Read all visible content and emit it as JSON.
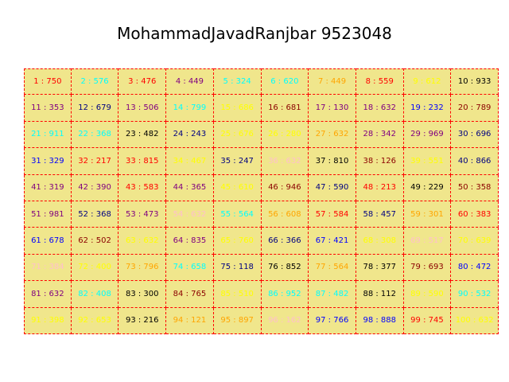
{
  "title": "MohammadJavadRanjbar 9523048",
  "colors": {
    "cell_background": "#f0e68c",
    "border": "#ff0000"
  },
  "cells": [
    {
      "text": "1 : 750",
      "color": "#ff0000"
    },
    {
      "text": "2 : 576",
      "color": "#00ffff"
    },
    {
      "text": "3 : 476",
      "color": "#ff0000"
    },
    {
      "text": "4 : 449",
      "color": "#800080"
    },
    {
      "text": "5 : 324",
      "color": "#00ffff"
    },
    {
      "text": "6 : 620",
      "color": "#00ffff"
    },
    {
      "text": "7 : 449",
      "color": "#ffa500"
    },
    {
      "text": "8 : 559",
      "color": "#ff0000"
    },
    {
      "text": "9 : 612",
      "color": "#ffff00"
    },
    {
      "text": "10 : 933",
      "color": "#000000"
    },
    {
      "text": "11 : 353",
      "color": "#800080"
    },
    {
      "text": "12 : 679",
      "color": "#000080"
    },
    {
      "text": "13 : 506",
      "color": "#800080"
    },
    {
      "text": "14 : 799",
      "color": "#00ffff"
    },
    {
      "text": "15 : 686",
      "color": "#ffff00"
    },
    {
      "text": "16 : 681",
      "color": "#8b0000"
    },
    {
      "text": "17 : 130",
      "color": "#800080"
    },
    {
      "text": "18 : 632",
      "color": "#800080"
    },
    {
      "text": "19 : 232",
      "color": "#0000ff"
    },
    {
      "text": "20 : 789",
      "color": "#8b0000"
    },
    {
      "text": "21 : 911",
      "color": "#00ffff"
    },
    {
      "text": "22 : 368",
      "color": "#00ffff"
    },
    {
      "text": "23 : 482",
      "color": "#000000"
    },
    {
      "text": "24 : 243",
      "color": "#000080"
    },
    {
      "text": "25 : 676",
      "color": "#ffff00"
    },
    {
      "text": "26 : 280",
      "color": "#ffff00"
    },
    {
      "text": "27 : 632",
      "color": "#ffa500"
    },
    {
      "text": "28 : 342",
      "color": "#800080"
    },
    {
      "text": "29 : 969",
      "color": "#800080"
    },
    {
      "text": "30 : 696",
      "color": "#000080"
    },
    {
      "text": "31 : 329",
      "color": "#0000ff"
    },
    {
      "text": "32 : 217",
      "color": "#ff0000"
    },
    {
      "text": "33 : 815",
      "color": "#ff0000"
    },
    {
      "text": "34 : 467",
      "color": "#ffff00"
    },
    {
      "text": "35 : 247",
      "color": "#000080"
    },
    {
      "text": "36 : 632",
      "color": "#ffc0cb"
    },
    {
      "text": "37 : 810",
      "color": "#000000"
    },
    {
      "text": "38 : 126",
      "color": "#8b0000"
    },
    {
      "text": "39 : 551",
      "color": "#ffff00"
    },
    {
      "text": "40 : 866",
      "color": "#000080"
    },
    {
      "text": "41 : 319",
      "color": "#800080"
    },
    {
      "text": "42 : 390",
      "color": "#800080"
    },
    {
      "text": "43 : 583",
      "color": "#ff0000"
    },
    {
      "text": "44 : 365",
      "color": "#800080"
    },
    {
      "text": "45 : 610",
      "color": "#ffff00"
    },
    {
      "text": "46 : 946",
      "color": "#8b0000"
    },
    {
      "text": "47 : 590",
      "color": "#000080"
    },
    {
      "text": "48 : 213",
      "color": "#ff0000"
    },
    {
      "text": "49 : 229",
      "color": "#000000"
    },
    {
      "text": "50 : 358",
      "color": "#8b0000"
    },
    {
      "text": "51 : 981",
      "color": "#800080"
    },
    {
      "text": "52 : 368",
      "color": "#000080"
    },
    {
      "text": "53 : 473",
      "color": "#800080"
    },
    {
      "text": "54 : 632",
      "color": "#ffc0cb"
    },
    {
      "text": "55 : 564",
      "color": "#00ffff"
    },
    {
      "text": "56 : 608",
      "color": "#ffa500"
    },
    {
      "text": "57 : 584",
      "color": "#ff0000"
    },
    {
      "text": "58 : 457",
      "color": "#000080"
    },
    {
      "text": "59 : 301",
      "color": "#ffa500"
    },
    {
      "text": "60 : 383",
      "color": "#ff0000"
    },
    {
      "text": "61 : 678",
      "color": "#0000ff"
    },
    {
      "text": "62 : 502",
      "color": "#8b0000"
    },
    {
      "text": "63 : 632",
      "color": "#ffff00"
    },
    {
      "text": "64 : 835",
      "color": "#800080"
    },
    {
      "text": "65 : 760",
      "color": "#ffff00"
    },
    {
      "text": "66 : 366",
      "color": "#000080"
    },
    {
      "text": "67 : 421",
      "color": "#0000ff"
    },
    {
      "text": "68 : 308",
      "color": "#ffff00"
    },
    {
      "text": "69 : 517",
      "color": "#ffc0cb"
    },
    {
      "text": "70 : 639",
      "color": "#ffff00"
    },
    {
      "text": "71 : 384",
      "color": "#ffc0cb"
    },
    {
      "text": "72 : 400",
      "color": "#ffff00"
    },
    {
      "text": "73 : 796",
      "color": "#ffa500"
    },
    {
      "text": "74 : 658",
      "color": "#00ffff"
    },
    {
      "text": "75 : 118",
      "color": "#000080"
    },
    {
      "text": "76 : 852",
      "color": "#000000"
    },
    {
      "text": "77 : 564",
      "color": "#ffa500"
    },
    {
      "text": "78 : 377",
      "color": "#000000"
    },
    {
      "text": "79 : 693",
      "color": "#8b0000"
    },
    {
      "text": "80 : 472",
      "color": "#0000ff"
    },
    {
      "text": "81 : 632",
      "color": "#800080"
    },
    {
      "text": "82 : 408",
      "color": "#00ffff"
    },
    {
      "text": "83 : 300",
      "color": "#000000"
    },
    {
      "text": "84 : 765",
      "color": "#8b0000"
    },
    {
      "text": "85 : 510",
      "color": "#ffff00"
    },
    {
      "text": "86 : 952",
      "color": "#00ffff"
    },
    {
      "text": "87 : 482",
      "color": "#00ffff"
    },
    {
      "text": "88 : 112",
      "color": "#000000"
    },
    {
      "text": "89 : 590",
      "color": "#ffff00"
    },
    {
      "text": "90 : 532",
      "color": "#00ffff"
    },
    {
      "text": "91 : 398",
      "color": "#ffff00"
    },
    {
      "text": "92 : 653",
      "color": "#ffff00"
    },
    {
      "text": "93 : 216",
      "color": "#000000"
    },
    {
      "text": "94 : 121",
      "color": "#ffa500"
    },
    {
      "text": "95 : 897",
      "color": "#ffa500"
    },
    {
      "text": "96 : 162",
      "color": "#ffc0cb"
    },
    {
      "text": "97 : 766",
      "color": "#0000ff"
    },
    {
      "text": "98 : 888",
      "color": "#0000ff"
    },
    {
      "text": "99 : 745",
      "color": "#ff0000"
    },
    {
      "text": "100 : 632",
      "color": "#ffff00"
    }
  ]
}
